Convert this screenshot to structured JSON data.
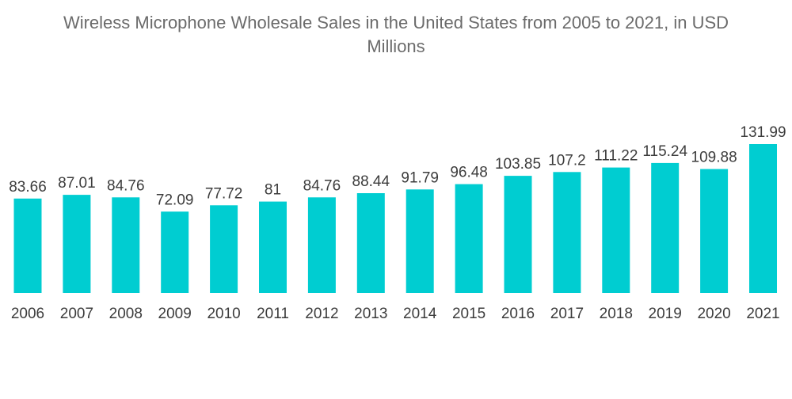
{
  "chart_data": {
    "type": "bar",
    "title": "Wireless Microphone Wholesale Sales in the United States from 2005 to 2021, in USD\nMillions",
    "xlabel": "",
    "ylabel": "",
    "categories": [
      "2006",
      "2007",
      "2008",
      "2009",
      "2010",
      "2011",
      "2012",
      "2013",
      "2014",
      "2015",
      "2016",
      "2017",
      "2018",
      "2019",
      "2020",
      "2021"
    ],
    "values": [
      83.66,
      87.01,
      84.76,
      72.09,
      77.72,
      81,
      84.76,
      88.44,
      91.79,
      96.48,
      103.85,
      107.2,
      111.22,
      115.24,
      109.88,
      131.99
    ],
    "value_labels": [
      "83.66",
      "87.01",
      "84.76",
      "72.09",
      "77.72",
      "81",
      "84.76",
      "88.44",
      "91.79",
      "96.48",
      "103.85",
      "107.2",
      "111.22",
      "115.24",
      "109.88",
      "131.99"
    ],
    "ylim": [
      0,
      131.99
    ],
    "grid": false,
    "legend": "none",
    "colors": {
      "bar": "#00CDD1",
      "text": "#3c3c3c",
      "title": "#6b6b6b"
    }
  }
}
